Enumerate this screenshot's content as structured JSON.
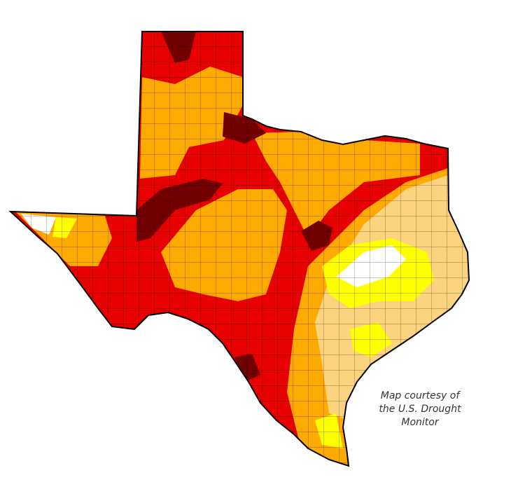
{
  "map": {
    "credit": [
      "Map courtesy of",
      "the U.S. Drought",
      "Monitor"
    ]
  }
}
